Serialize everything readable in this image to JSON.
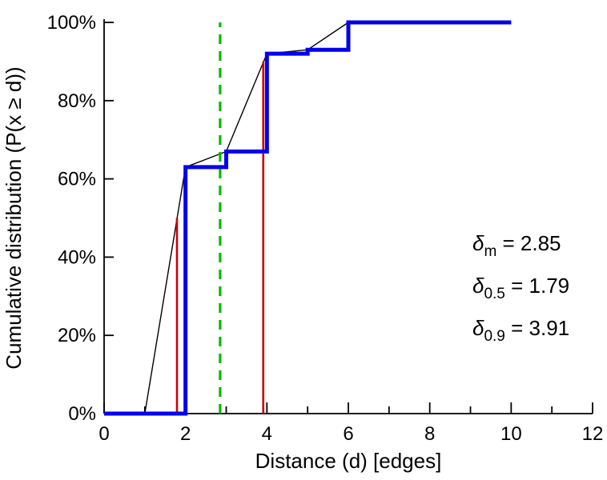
{
  "chart_data": {
    "type": "line",
    "title": "",
    "xlabel": "Distance (d) [edges]",
    "ylabel": "Cumulative distribution (P(x  ≥ d))",
    "xlim": [
      0,
      12
    ],
    "ylim": [
      0,
      100
    ],
    "grid": false,
    "legend": null,
    "x_major_ticks": [
      0,
      2,
      4,
      6,
      8,
      10,
      12
    ],
    "x_major_tick_labels": [
      "0",
      "2",
      "4",
      "6",
      "8",
      "10",
      "12"
    ],
    "x_minor_ticks": [
      1,
      3,
      5,
      7,
      9,
      11
    ],
    "y_ticks": [
      0,
      20,
      40,
      60,
      80,
      100
    ],
    "y_tick_labels": [
      "0%",
      "20%",
      "40%",
      "60%",
      "80%",
      "100%"
    ],
    "series": [
      {
        "name": "empirical-cdf-step",
        "style": "step",
        "color": "#0000ee",
        "width": 5,
        "x": [
          2,
          3,
          4,
          5,
          6,
          10
        ],
        "y": [
          63,
          67,
          92,
          93,
          100,
          100
        ]
      },
      {
        "name": "linear-interpolation",
        "style": "line",
        "color": "#000000",
        "width": 1.4,
        "x": [
          1,
          2,
          3,
          4,
          5,
          6,
          10
        ],
        "y": [
          0,
          63,
          67,
          92,
          93,
          100,
          100
        ]
      }
    ],
    "vlines": [
      {
        "name": "median-vline",
        "x": 1.79,
        "y0": 0,
        "y1": 50,
        "color": "#cc0000",
        "width": 2.6,
        "dash": ""
      },
      {
        "name": "p90-vline",
        "x": 3.91,
        "y0": 0,
        "y1": 90,
        "color": "#cc0000",
        "width": 2.6,
        "dash": ""
      },
      {
        "name": "mean-vline",
        "x": 2.85,
        "y0": 0,
        "y1": 100,
        "color": "#00bb00",
        "width": 3.2,
        "dash": "12 9"
      }
    ],
    "annotations": [
      {
        "name": "annotation-delta-mean",
        "symbol": "δ",
        "sub": "m",
        "text": " = 2.85"
      },
      {
        "name": "annotation-delta-median",
        "symbol": "δ",
        "sub": "0.5",
        "text": " = 1.79"
      },
      {
        "name": "annotation-delta-p90",
        "symbol": "δ",
        "sub": "0.9",
        "text": " = 3.91"
      }
    ]
  },
  "colors": {
    "axis": "#000000",
    "cdf_step": "#0000ee",
    "interpolation": "#000000",
    "percentile_lines": "#cc0000",
    "mean_line": "#00bb00",
    "background": "#ffffff"
  }
}
